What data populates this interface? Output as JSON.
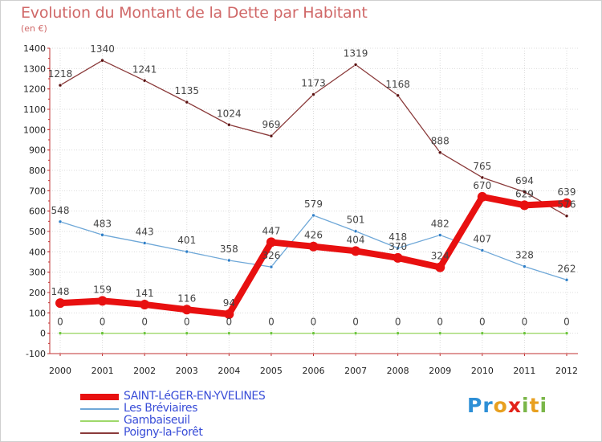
{
  "title": "Evolution du Montant de la Dette par Habitant",
  "unit_label": "(en €)",
  "logo": {
    "letters": [
      "P",
      "r",
      "o",
      "x",
      "i",
      "t",
      "i"
    ],
    "colors": [
      "#2d8fd6",
      "#2d8fd6",
      "#e8a020",
      "#e2231a",
      "#7ab648",
      "#e8a020",
      "#7ab648"
    ]
  },
  "chart_data": {
    "type": "line",
    "title": "Evolution du Montant de la Dette par Habitant",
    "ylabel": "(en €)",
    "xlabel": "",
    "x": [
      "2000",
      "2001",
      "2002",
      "2003",
      "2004",
      "2005",
      "2006",
      "2007",
      "2008",
      "2009",
      "2010",
      "2011",
      "2012"
    ],
    "yticks": [
      -100,
      0,
      100,
      200,
      300,
      400,
      500,
      600,
      700,
      800,
      900,
      1000,
      1100,
      1200,
      1300,
      1400
    ],
    "ylim": [
      -100,
      1400
    ],
    "grid": true,
    "legend_position": "bottom-left",
    "series": [
      {
        "name": "SAINT-LéGER-EN-YVELINES",
        "color": "#e81010",
        "point_color": "#e81010",
        "label_color": "#ffffff",
        "width": 8,
        "marker": 8,
        "values": [
          148,
          159,
          141,
          116,
          94,
          447,
          426,
          404,
          370,
          324,
          670,
          629,
          639
        ],
        "labels": [
          "148",
          "159",
          "141",
          "116",
          "94",
          "447",
          "426",
          "404",
          "370",
          "324",
          "670",
          "629",
          "639"
        ]
      },
      {
        "name": "Les Bréviaires",
        "color": "#6fa8d8",
        "point_color": "#2f7fc8",
        "label_color": "#555555",
        "width": 1.3,
        "marker": 3,
        "values": [
          548,
          483,
          443,
          401,
          358,
          326,
          579,
          501,
          418,
          482,
          407,
          328,
          262
        ],
        "labels": [
          "548",
          "483",
          "443",
          "401",
          "358",
          "326",
          "579",
          "501",
          "418",
          "482",
          "407",
          "328",
          "262"
        ]
      },
      {
        "name": "Gambaiseuil",
        "color": "#9ed86a",
        "point_color": "#6cc43c",
        "label_color": "#555555",
        "width": 1.3,
        "marker": 3,
        "values": [
          0,
          0,
          0,
          0,
          0,
          0,
          0,
          0,
          0,
          0,
          0,
          0,
          0
        ],
        "labels": [
          "0",
          "0",
          "0",
          "0",
          "0",
          "0",
          "0",
          "0",
          "0",
          "0",
          "0",
          "0",
          "0"
        ]
      },
      {
        "name": "Poigny-la-Forêt",
        "color": "#8a3a3a",
        "point_color": "#5a1010",
        "label_color": "#555555",
        "width": 1.3,
        "marker": 3,
        "values": [
          1218,
          1340,
          1241,
          1135,
          1024,
          969,
          1173,
          1319,
          1168,
          888,
          765,
          694,
          576
        ],
        "labels": [
          "1218",
          "1340",
          "1241",
          "1135",
          "1024",
          "969",
          "1173",
          "1319",
          "1168",
          "888",
          "765",
          "694",
          "576"
        ]
      }
    ]
  }
}
